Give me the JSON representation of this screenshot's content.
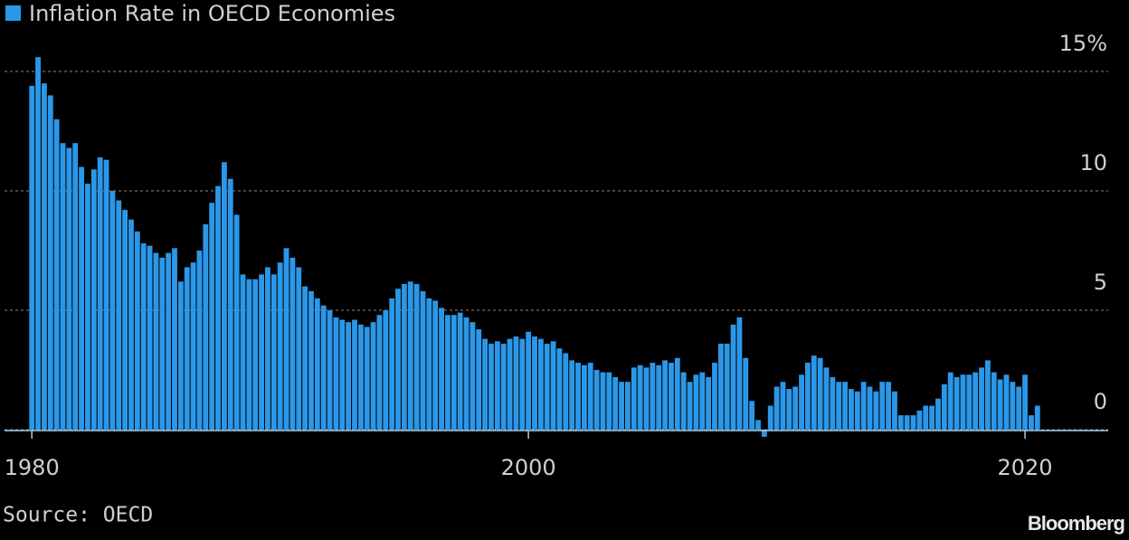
{
  "chart_data": {
    "type": "bar",
    "source": "Source: OECD",
    "brand": "Bloomberg",
    "series": [
      {
        "name": "Inflation Rate in OECD Economies",
        "color": "#2b97e8",
        "values": [
          14.4,
          15.6,
          14.5,
          14.0,
          13.0,
          12.0,
          11.8,
          12.0,
          11.0,
          10.3,
          10.9,
          11.4,
          11.3,
          10.0,
          9.6,
          9.2,
          8.8,
          8.3,
          7.8,
          7.7,
          7.4,
          7.2,
          7.4,
          7.6,
          6.2,
          6.8,
          7.0,
          7.5,
          8.6,
          9.5,
          10.2,
          11.2,
          10.5,
          9.0,
          6.5,
          6.3,
          6.3,
          6.5,
          6.8,
          6.5,
          7.0,
          7.6,
          7.2,
          6.8,
          6.0,
          5.8,
          5.5,
          5.2,
          5.0,
          4.7,
          4.6,
          4.5,
          4.6,
          4.4,
          4.3,
          4.5,
          4.8,
          5.0,
          5.5,
          5.9,
          6.1,
          6.2,
          6.1,
          5.8,
          5.5,
          5.4,
          5.1,
          4.8,
          4.8,
          4.9,
          4.7,
          4.5,
          4.2,
          3.8,
          3.6,
          3.7,
          3.6,
          3.8,
          3.9,
          3.8,
          4.1,
          3.9,
          3.8,
          3.6,
          3.7,
          3.4,
          3.2,
          2.9,
          2.8,
          2.7,
          2.8,
          2.5,
          2.4,
          2.4,
          2.2,
          2.0,
          2.0,
          2.6,
          2.7,
          2.6,
          2.8,
          2.7,
          2.9,
          2.8,
          3.0,
          2.4,
          2.0,
          2.3,
          2.4,
          2.2,
          2.8,
          3.6,
          3.6,
          4.4,
          4.7,
          3.0,
          1.2,
          0.4,
          -0.3,
          1.0,
          1.8,
          2.0,
          1.7,
          1.8,
          2.3,
          2.8,
          3.1,
          3.0,
          2.6,
          2.2,
          2.0,
          2.0,
          1.7,
          1.6,
          2.0,
          1.8,
          1.6,
          2.0,
          2.0,
          1.6,
          0.6,
          0.6,
          0.6,
          0.8,
          1.0,
          1.0,
          1.3,
          1.9,
          2.4,
          2.2,
          2.3,
          2.3,
          2.4,
          2.6,
          2.9,
          2.4,
          2.1,
          2.3,
          2.0,
          1.8,
          2.3,
          0.6,
          1.0
        ]
      }
    ],
    "x": [
      1980,
      1980.25,
      1980.5,
      1980.75,
      1981,
      1981.25,
      1981.5,
      1981.75,
      1982,
      1982.25,
      1982.5,
      1982.75,
      1983,
      1983.25,
      1983.5,
      1983.75,
      1984,
      1984.25,
      1984.5,
      1984.75,
      1985,
      1985.25,
      1985.5,
      1985.75,
      1986,
      1986.25,
      1986.5,
      1986.75,
      1987,
      1987.25,
      1987.5,
      1987.75,
      1988,
      1988.25,
      1988.5,
      1988.75,
      1989,
      1989.25,
      1989.5,
      1989.75,
      1990,
      1990.25,
      1990.5,
      1990.75,
      1991,
      1991.25,
      1991.5,
      1991.75,
      1992,
      1992.25,
      1992.5,
      1992.75,
      1993,
      1993.25,
      1993.5,
      1993.75,
      1994,
      1994.25,
      1994.5,
      1994.75,
      1995,
      1995.25,
      1995.5,
      1995.75,
      1996,
      1996.25,
      1996.5,
      1996.75,
      1997,
      1997.25,
      1997.5,
      1997.75,
      1998,
      1998.25,
      1998.5,
      1998.75,
      1999,
      1999.25,
      1999.5,
      1999.75,
      2000,
      2000.25,
      2000.5,
      2000.75,
      2001,
      2001.25,
      2001.5,
      2001.75,
      2002,
      2002.25,
      2002.5,
      2002.75,
      2003,
      2003.25,
      2003.5,
      2003.75,
      2004,
      2004.25,
      2004.5,
      2004.75,
      2005,
      2005.25,
      2005.5,
      2005.75,
      2006,
      2006.25,
      2006.5,
      2006.75,
      2007,
      2007.25,
      2007.5,
      2007.75,
      2008,
      2008.25,
      2008.5,
      2008.75,
      2009,
      2009.25,
      2009.5,
      2009.75,
      2010,
      2010.25,
      2010.5,
      2010.75,
      2011,
      2011.25,
      2011.5,
      2011.75,
      2012,
      2012.25,
      2012.5,
      2012.75,
      2013,
      2013.25,
      2013.5,
      2013.75,
      2014,
      2014.25,
      2014.5,
      2014.75,
      2015,
      2015.25,
      2015.5,
      2015.75,
      2016,
      2016.25,
      2016.5,
      2016.75,
      2017,
      2017.25,
      2017.5,
      2017.75,
      2018,
      2018.25,
      2018.5,
      2018.75,
      2019,
      2019.25,
      2019.5,
      2019.75,
      2020,
      2020.25,
      2020.5
    ],
    "xlim": [
      1978.9,
      2023.35
    ],
    "xticks": [
      1980,
      2000,
      2020
    ],
    "ylim": [
      -0.6,
      16
    ],
    "yticks": [
      0,
      5,
      10,
      {
        "value": 15,
        "label": "15%"
      }
    ],
    "grid": true,
    "legend": "top-left"
  }
}
